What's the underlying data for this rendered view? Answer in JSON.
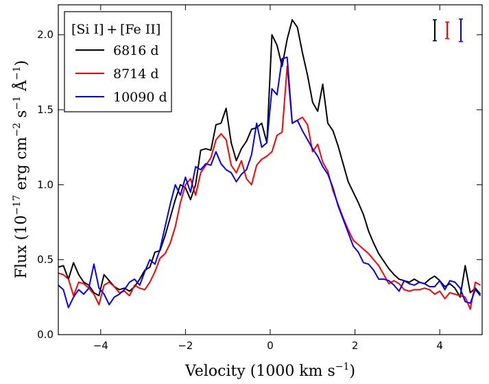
{
  "chart_data": {
    "type": "line",
    "title": "",
    "xlabel": "Velocity (1000 km s",
    "xlabel_sup": "−1",
    "xlabel_close": ")",
    "ylabel": "Flux (10",
    "ylabel_sup1": "−17",
    "ylabel_mid": " erg cm",
    "ylabel_sup2": "−2",
    "ylabel_s": " s",
    "ylabel_sup3": "−1",
    "ylabel_A": " Å",
    "ylabel_sup4": "−1",
    "ylabel_close": ")",
    "xlim": [
      -5,
      5
    ],
    "ylim": [
      0,
      2.2
    ],
    "xticks": [
      -4,
      -2,
      0,
      2,
      4
    ],
    "xtick_labels": [
      "−4",
      "−2",
      "0",
      "2",
      "4"
    ],
    "yticks": [
      0.0,
      0.5,
      1.0,
      1.5,
      2.0
    ],
    "ytick_labels": [
      "0.0",
      "0.5",
      "1.0",
      "1.5",
      "2.0"
    ],
    "grid": false,
    "legend": {
      "title": "[Si I] + [Fe II]",
      "placement": "top-left"
    },
    "error_bars": {
      "placement": "top-right",
      "items": [
        {
          "series": "6816 d",
          "center": 2.03,
          "half_length": 0.07
        },
        {
          "series": "8714 d",
          "center": 2.03,
          "half_length": 0.055
        },
        {
          "series": "10090 d",
          "center": 2.03,
          "half_length": 0.075
        }
      ]
    },
    "series": [
      {
        "name": "6816 d",
        "color": "#000000",
        "x": [
          -5.0,
          -4.88,
          -4.76,
          -4.64,
          -4.52,
          -4.4,
          -4.28,
          -4.16,
          -4.04,
          -3.92,
          -3.8,
          -3.68,
          -3.56,
          -3.44,
          -3.32,
          -3.2,
          -3.08,
          -2.96,
          -2.84,
          -2.72,
          -2.6,
          -2.48,
          -2.36,
          -2.24,
          -2.12,
          -2.0,
          -1.88,
          -1.76,
          -1.64,
          -1.52,
          -1.4,
          -1.28,
          -1.16,
          -1.04,
          -0.92,
          -0.8,
          -0.68,
          -0.56,
          -0.44,
          -0.32,
          -0.2,
          -0.08,
          0.04,
          0.16,
          0.28,
          0.4,
          0.52,
          0.64,
          0.76,
          0.88,
          1.0,
          1.12,
          1.24,
          1.36,
          1.48,
          1.6,
          1.72,
          1.84,
          1.96,
          2.08,
          2.2,
          2.32,
          2.44,
          2.56,
          2.68,
          2.8,
          2.92,
          3.04,
          3.16,
          3.28,
          3.4,
          3.52,
          3.64,
          3.76,
          3.88,
          4.0,
          4.12,
          4.24,
          4.36,
          4.48,
          4.6,
          4.72,
          4.84,
          4.96
        ],
        "values": [
          0.45,
          0.46,
          0.37,
          0.48,
          0.4,
          0.35,
          0.33,
          0.28,
          0.26,
          0.4,
          0.36,
          0.32,
          0.3,
          0.31,
          0.29,
          0.32,
          0.37,
          0.43,
          0.45,
          0.55,
          0.56,
          0.66,
          0.78,
          0.9,
          1.0,
          0.98,
          0.9,
          1.0,
          1.23,
          1.24,
          1.23,
          1.4,
          1.41,
          1.51,
          1.28,
          1.16,
          1.24,
          1.29,
          1.37,
          1.38,
          1.41,
          1.28,
          2.0,
          1.93,
          1.79,
          1.97,
          2.1,
          2.05,
          1.88,
          1.73,
          1.55,
          1.49,
          1.67,
          1.41,
          1.36,
          1.26,
          1.14,
          1.02,
          0.95,
          0.88,
          0.8,
          0.69,
          0.61,
          0.54,
          0.49,
          0.44,
          0.4,
          0.37,
          0.36,
          0.35,
          0.37,
          0.35,
          0.34,
          0.37,
          0.39,
          0.36,
          0.32,
          0.34,
          0.31,
          0.25,
          0.46,
          0.28,
          0.31,
          0.27
        ]
      },
      {
        "name": "8714 d",
        "color": "#ff0000",
        "x": [
          -5.0,
          -4.88,
          -4.76,
          -4.64,
          -4.52,
          -4.4,
          -4.28,
          -4.16,
          -4.04,
          -3.92,
          -3.8,
          -3.68,
          -3.56,
          -3.44,
          -3.32,
          -3.2,
          -3.08,
          -2.96,
          -2.84,
          -2.72,
          -2.6,
          -2.48,
          -2.36,
          -2.24,
          -2.12,
          -2.0,
          -1.88,
          -1.76,
          -1.64,
          -1.52,
          -1.4,
          -1.28,
          -1.16,
          -1.04,
          -0.92,
          -0.8,
          -0.68,
          -0.56,
          -0.44,
          -0.32,
          -0.2,
          -0.08,
          0.04,
          0.16,
          0.28,
          0.4,
          0.52,
          0.64,
          0.76,
          0.88,
          1.0,
          1.12,
          1.24,
          1.36,
          1.48,
          1.6,
          1.72,
          1.84,
          1.96,
          2.08,
          2.2,
          2.32,
          2.44,
          2.56,
          2.68,
          2.8,
          2.92,
          3.04,
          3.16,
          3.28,
          3.4,
          3.52,
          3.64,
          3.76,
          3.88,
          4.0,
          4.12,
          4.24,
          4.36,
          4.48,
          4.6,
          4.72,
          4.84,
          4.96
        ],
        "values": [
          0.41,
          0.4,
          0.37,
          0.26,
          0.35,
          0.34,
          0.31,
          0.27,
          0.2,
          0.33,
          0.35,
          0.32,
          0.28,
          0.29,
          0.26,
          0.33,
          0.31,
          0.3,
          0.35,
          0.42,
          0.51,
          0.54,
          0.61,
          0.72,
          0.88,
          1.0,
          1.04,
          0.93,
          1.08,
          1.13,
          1.18,
          1.3,
          1.34,
          1.3,
          1.13,
          1.08,
          1.16,
          1.04,
          1.0,
          1.13,
          1.17,
          1.19,
          1.22,
          1.33,
          1.35,
          1.79,
          1.41,
          1.43,
          1.45,
          1.4,
          1.22,
          1.27,
          1.15,
          1.09,
          0.96,
          0.87,
          0.78,
          0.7,
          0.63,
          0.6,
          0.57,
          0.54,
          0.5,
          0.46,
          0.4,
          0.34,
          0.36,
          0.34,
          0.3,
          0.29,
          0.3,
          0.3,
          0.31,
          0.3,
          0.27,
          0.29,
          0.24,
          0.28,
          0.27,
          0.26,
          0.25,
          0.17,
          0.35,
          0.33
        ]
      },
      {
        "name": "10090 d",
        "color": "#0000ff",
        "x": [
          -5.0,
          -4.88,
          -4.76,
          -4.64,
          -4.52,
          -4.4,
          -4.28,
          -4.16,
          -4.04,
          -3.92,
          -3.8,
          -3.68,
          -3.56,
          -3.44,
          -3.32,
          -3.2,
          -3.08,
          -2.96,
          -2.84,
          -2.72,
          -2.6,
          -2.48,
          -2.36,
          -2.24,
          -2.12,
          -2.0,
          -1.88,
          -1.76,
          -1.64,
          -1.52,
          -1.4,
          -1.28,
          -1.16,
          -1.04,
          -0.92,
          -0.8,
          -0.68,
          -0.56,
          -0.44,
          -0.32,
          -0.2,
          -0.08,
          0.04,
          0.16,
          0.28,
          0.4,
          0.52,
          0.64,
          0.76,
          0.88,
          1.0,
          1.12,
          1.24,
          1.36,
          1.48,
          1.6,
          1.72,
          1.84,
          1.96,
          2.08,
          2.2,
          2.32,
          2.44,
          2.56,
          2.68,
          2.8,
          2.92,
          3.04,
          3.16,
          3.28,
          3.4,
          3.52,
          3.64,
          3.76,
          3.88,
          4.0,
          4.12,
          4.24,
          4.36,
          4.48,
          4.6,
          4.72,
          4.84,
          4.96
        ],
        "values": [
          0.33,
          0.3,
          0.18,
          0.25,
          0.3,
          0.27,
          0.31,
          0.47,
          0.31,
          0.27,
          0.2,
          0.25,
          0.27,
          0.3,
          0.35,
          0.37,
          0.33,
          0.42,
          0.5,
          0.47,
          0.57,
          0.72,
          0.87,
          1.0,
          0.93,
          1.05,
          0.95,
          1.12,
          1.1,
          1.14,
          1.13,
          1.22,
          1.14,
          1.1,
          1.08,
          1.02,
          1.07,
          1.1,
          1.2,
          1.41,
          1.25,
          1.28,
          1.64,
          1.6,
          1.84,
          1.85,
          1.41,
          1.43,
          1.36,
          1.3,
          1.24,
          1.19,
          1.12,
          1.07,
          0.98,
          0.86,
          0.77,
          0.68,
          0.59,
          0.55,
          0.48,
          0.47,
          0.43,
          0.37,
          0.37,
          0.36,
          0.33,
          0.29,
          0.36,
          0.34,
          0.33,
          0.35,
          0.34,
          0.32,
          0.32,
          0.36,
          0.3,
          0.36,
          0.35,
          0.31,
          0.22,
          0.21,
          0.3,
          0.26
        ]
      }
    ]
  }
}
